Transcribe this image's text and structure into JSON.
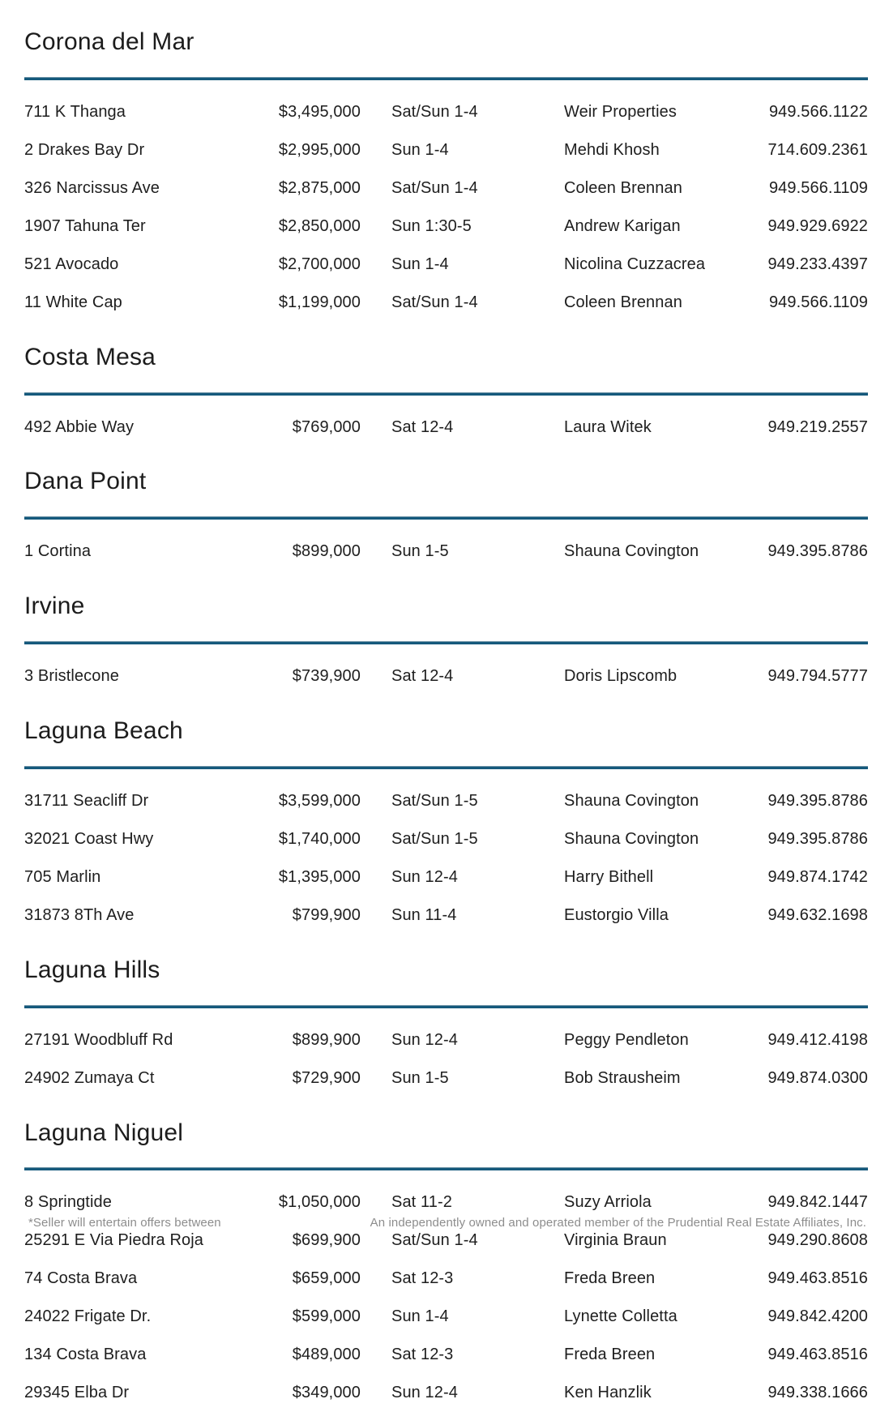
{
  "colors": {
    "rule": "#15597c",
    "text": "#1e1e1e",
    "footer_text": "#8d8d8d"
  },
  "sections": [
    {
      "city": "Corona del Mar",
      "listings": [
        {
          "address": "711 K Thanga",
          "price": "$3,495,000",
          "time": "Sat/Sun 1-4",
          "agent": "Weir Properties",
          "phone": "949.566.1122"
        },
        {
          "address": "2 Drakes Bay Dr",
          "price": "$2,995,000",
          "time": "Sun 1-4",
          "agent": "Mehdi Khosh",
          "phone": "714.609.2361"
        },
        {
          "address": "326 Narcissus Ave",
          "price": "$2,875,000",
          "time": "Sat/Sun 1-4",
          "agent": "Coleen Brennan",
          "phone": "949.566.1109"
        },
        {
          "address": "1907 Tahuna Ter",
          "price": "$2,850,000",
          "time": "Sun 1:30-5",
          "agent": "Andrew Karigan",
          "phone": "949.929.6922"
        },
        {
          "address": "521 Avocado",
          "price": "$2,700,000",
          "time": "Sun 1-4",
          "agent": "Nicolina Cuzzacrea",
          "phone": "949.233.4397"
        },
        {
          "address": "11 White Cap",
          "price": "$1,199,000",
          "time": "Sat/Sun 1-4",
          "agent": "Coleen Brennan",
          "phone": "949.566.1109"
        }
      ]
    },
    {
      "city": "Costa Mesa",
      "listings": [
        {
          "address": "492 Abbie Way",
          "price": "$769,000",
          "time": "Sat 12-4",
          "agent": "Laura Witek",
          "phone": "949.219.2557"
        }
      ]
    },
    {
      "city": "Dana Point",
      "listings": [
        {
          "address": "1 Cortina",
          "price": "$899,000",
          "time": "Sun 1-5",
          "agent": "Shauna Covington",
          "phone": "949.395.8786"
        }
      ]
    },
    {
      "city": "Irvine",
      "listings": [
        {
          "address": "3 Bristlecone",
          "price": "$739,900",
          "time": "Sat 12-4",
          "agent": "Doris Lipscomb",
          "phone": "949.794.5777"
        }
      ]
    },
    {
      "city": "Laguna Beach",
      "listings": [
        {
          "address": "31711 Seacliff Dr",
          "price": "$3,599,000",
          "time": "Sat/Sun 1-5",
          "agent": "Shauna Covington",
          "phone": "949.395.8786"
        },
        {
          "address": "32021 Coast Hwy",
          "price": "$1,740,000",
          "time": "Sat/Sun 1-5",
          "agent": "Shauna Covington",
          "phone": "949.395.8786"
        },
        {
          "address": "705 Marlin",
          "price": "$1,395,000",
          "time": "Sun 12-4",
          "agent": "Harry Bithell",
          "phone": "949.874.1742"
        },
        {
          "address": "31873 8Th Ave",
          "price": "$799,900",
          "time": "Sun 11-4",
          "agent": "Eustorgio Villa",
          "phone": "949.632.1698"
        }
      ]
    },
    {
      "city": "Laguna Hills",
      "listings": [
        {
          "address": "27191 Woodbluff Rd",
          "price": "$899,900",
          "time": "Sun 12-4",
          "agent": "Peggy Pendleton",
          "phone": "949.412.4198"
        },
        {
          "address": "24902 Zumaya Ct",
          "price": "$729,900",
          "time": "Sun 1-5",
          "agent": "Bob Strausheim",
          "phone": "949.874.0300"
        }
      ]
    },
    {
      "city": "Laguna Niguel",
      "listings": [
        {
          "address": "8 Springtide",
          "price": "$1,050,000",
          "time": "Sat 11-2",
          "agent": "Suzy Arriola",
          "phone": "949.842.1447"
        },
        {
          "address": "25291 E Via Piedra Roja",
          "price": "$699,900",
          "time": "Sat/Sun 1-4",
          "agent": "Virginia Braun",
          "phone": "949.290.8608"
        },
        {
          "address": "74 Costa Brava",
          "price": "$659,000",
          "time": "Sat 12-3",
          "agent": "Freda Breen",
          "phone": "949.463.8516"
        },
        {
          "address": "24022 Frigate Dr.",
          "price": "$599,000",
          "time": "Sun 1-4",
          "agent": "Lynette Colletta",
          "phone": "949.842.4200"
        },
        {
          "address": "134 Costa Brava",
          "price": "$489,000",
          "time": "Sat 12-3",
          "agent": "Freda Breen",
          "phone": "949.463.8516"
        },
        {
          "address": "29345 Elba Dr",
          "price": "$349,000",
          "time": "Sun 12-4",
          "agent": "Ken Hanzlik",
          "phone": "949.338.1666"
        }
      ]
    }
  ],
  "footer": {
    "left": "*Seller will entertain offers between",
    "right": "An independently owned and operated member of the Prudential Real Estate Affiliates, Inc."
  }
}
